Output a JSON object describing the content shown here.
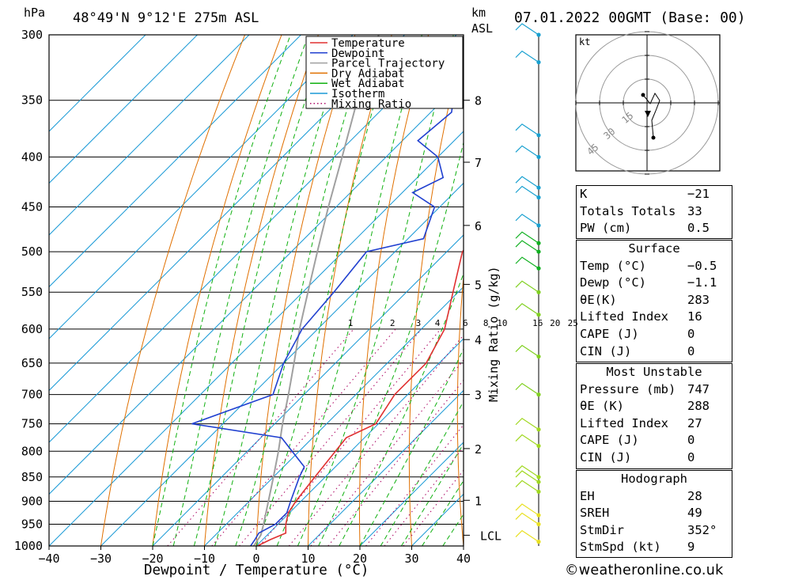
{
  "header": {
    "unit_left": "hPa",
    "location": "48°49'N  9°12'E  275m  ASL",
    "unit_km": "km",
    "unit_asl": "ASL",
    "datetime": "07.01.2022  00GMT  (Base: 00)"
  },
  "chart_data": {
    "type": "line",
    "subtype": "skew-T log-P sounding",
    "xlabel": "Dewpoint / Temperature (°C)",
    "ylabel_left": "hPa",
    "ylabel_right": "Mixing Ratio (g/kg)",
    "x_ticks": [
      "−40",
      "−30",
      "−20",
      "−10",
      "0",
      "10",
      "20",
      "30",
      "40"
    ],
    "x_tick_values": [
      -40,
      -30,
      -20,
      -10,
      0,
      10,
      20,
      30,
      40
    ],
    "y_ticks": [
      "300",
      "350",
      "400",
      "450",
      "500",
      "550",
      "600",
      "650",
      "700",
      "750",
      "800",
      "850",
      "900",
      "950",
      "1000"
    ],
    "y_tick_values": [
      300,
      350,
      400,
      450,
      500,
      550,
      600,
      650,
      700,
      750,
      800,
      850,
      900,
      950,
      1000
    ],
    "xlim": [
      -40,
      40
    ],
    "ylim": [
      1000,
      300
    ],
    "y_scale": "log",
    "km_ticks": [
      {
        "label": "8",
        "p": 350
      },
      {
        "label": "7",
        "p": 405
      },
      {
        "label": "6",
        "p": 470
      },
      {
        "label": "5",
        "p": 540
      },
      {
        "label": "4",
        "p": 615
      },
      {
        "label": "3",
        "p": 700
      },
      {
        "label": "2",
        "p": 795
      },
      {
        "label": "1",
        "p": 898
      },
      {
        "label": "LCL",
        "p": 975
      }
    ],
    "mixing_ratio_labels": [
      "1",
      "2",
      "3",
      "4",
      "6",
      "8",
      "10",
      "16",
      "20",
      "25"
    ],
    "mixing_ratio_values": [
      1,
      2,
      3,
      4,
      6,
      8,
      10,
      16,
      20,
      25
    ],
    "legend": [
      "Temperature",
      "Dewpoint",
      "Parcel Trajectory",
      "Dry Adiabat",
      "Wet Adiabat",
      "Isotherm",
      "Mixing Ratio"
    ],
    "legend_position": "top-right",
    "colors": {
      "temperature": "#e03030",
      "dewpoint": "#2040d0",
      "parcel": "#a0a0a0",
      "dry": "#e07000",
      "wet": "#10b010",
      "isotherm": "#1a9ad6",
      "mixing": "#b0106a"
    },
    "series": [
      {
        "name": "Temperature",
        "points": [
          [
            1000,
            0.2
          ],
          [
            985,
            1.5
          ],
          [
            970,
            3.2
          ],
          [
            950,
            1.5
          ],
          [
            925,
            -0.2
          ],
          [
            900,
            -1.0
          ],
          [
            850,
            -2.0
          ],
          [
            800,
            -3.0
          ],
          [
            775,
            -3.5
          ],
          [
            750,
            -0.5
          ],
          [
            700,
            -2.5
          ],
          [
            650,
            -2.5
          ],
          [
            600,
            -5.5
          ],
          [
            550,
            -11
          ],
          [
            500,
            -17
          ],
          [
            480,
            -17.5
          ],
          [
            450,
            -23
          ],
          [
            440,
            -23.5
          ],
          [
            400,
            -30
          ],
          [
            380,
            -30.5
          ],
          [
            350,
            -37
          ],
          [
            320,
            -41
          ],
          [
            300,
            -45
          ]
        ]
      },
      {
        "name": "Dewpoint",
        "points": [
          [
            1000,
            -1.1
          ],
          [
            985,
            -1.5
          ],
          [
            970,
            -2.0
          ],
          [
            950,
            -0.5
          ],
          [
            925,
            -0.5
          ],
          [
            900,
            -2.0
          ],
          [
            850,
            -5.0
          ],
          [
            830,
            -6.0
          ],
          [
            775,
            -16
          ],
          [
            750,
            -36
          ],
          [
            700,
            -26
          ],
          [
            650,
            -30
          ],
          [
            600,
            -33
          ],
          [
            550,
            -34
          ],
          [
            500,
            -35.5
          ],
          [
            485,
            -27
          ],
          [
            450,
            -31
          ],
          [
            435,
            -38
          ],
          [
            420,
            -35
          ],
          [
            400,
            -40
          ],
          [
            385,
            -47
          ],
          [
            360,
            -46
          ],
          [
            350,
            -48
          ],
          [
            330,
            -58
          ],
          [
            300,
            -56
          ]
        ]
      },
      {
        "name": "Parcel Trajectory",
        "points": [
          [
            1000,
            -0.5
          ],
          [
            975,
            -1.2
          ],
          [
            950,
            -2.8
          ],
          [
            900,
            -6.3
          ],
          [
            850,
            -10
          ],
          [
            800,
            -14
          ],
          [
            750,
            -18.5
          ],
          [
            700,
            -23
          ],
          [
            650,
            -28
          ],
          [
            600,
            -33.5
          ],
          [
            550,
            -39
          ],
          [
            500,
            -45
          ],
          [
            450,
            -51.5
          ],
          [
            400,
            -58.5
          ],
          [
            350,
            -66.5
          ],
          [
            300,
            -75
          ]
        ]
      }
    ]
  },
  "hodograph": {
    "unit": "kt",
    "ring_labels": [
      "15",
      "30",
      "45"
    ]
  },
  "indices": {
    "rows": [
      {
        "label": "K",
        "value": "−21"
      },
      {
        "label": "Totals Totals",
        "value": "33"
      },
      {
        "label": "PW (cm)",
        "value": "0.5"
      }
    ]
  },
  "surface": {
    "title": "Surface",
    "rows": [
      {
        "label": "Temp (°C)",
        "value": "−0.5"
      },
      {
        "label": "Dewp (°C)",
        "value": "−1.1"
      },
      {
        "label": "θE(K)",
        "value": "283"
      },
      {
        "label": "Lifted Index",
        "value": "16"
      },
      {
        "label": "CAPE (J)",
        "value": "0"
      },
      {
        "label": "CIN (J)",
        "value": "0"
      }
    ]
  },
  "most_unstable": {
    "title": "Most Unstable",
    "rows": [
      {
        "label": "Pressure (mb)",
        "value": "747"
      },
      {
        "label": "θE (K)",
        "value": "288"
      },
      {
        "label": "Lifted Index",
        "value": "27"
      },
      {
        "label": "CAPE (J)",
        "value": "0"
      },
      {
        "label": "CIN (J)",
        "value": "0"
      }
    ]
  },
  "hodograph_table": {
    "title": "Hodograph",
    "rows": [
      {
        "label": "EH",
        "value": "28"
      },
      {
        "label": "SREH",
        "value": "49"
      },
      {
        "label": "StmDir",
        "value": "352°"
      },
      {
        "label": "StmSpd (kt)",
        "value": "9"
      }
    ]
  },
  "credit": "©weatheronline.co.uk"
}
